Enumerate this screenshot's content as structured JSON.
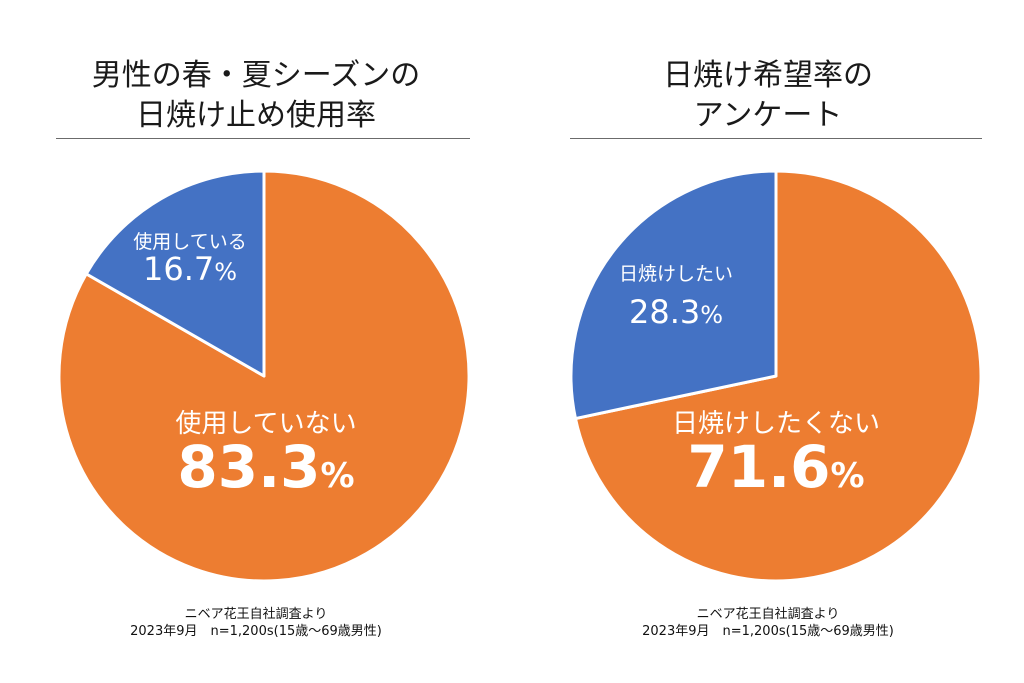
{
  "chart_data": [
    {
      "type": "pie",
      "title": "男性の春・夏シーズンの\n日焼け止め使用率",
      "slices": [
        {
          "label": "使用している",
          "value": 16.7,
          "display": "16.7",
          "color": "#4472C4"
        },
        {
          "label": "使用していない",
          "value": 83.3,
          "display": "83.3",
          "color": "#ED7D31"
        }
      ],
      "unit": "%",
      "source": [
        "ニベア花王自社調査より",
        "2023年9月　n=1,200s(15歳〜69歳男性)"
      ]
    },
    {
      "type": "pie",
      "title": "日焼け希望率の\nアンケート",
      "slices": [
        {
          "label": "日焼けしたい",
          "value": 28.3,
          "display": "28.3",
          "color": "#4472C4"
        },
        {
          "label": "日焼けしたくない",
          "value": 71.6,
          "display": "71.6",
          "color": "#ED7D31"
        }
      ],
      "unit": "%",
      "source": [
        "ニベア花王自社調査より",
        "2023年9月　n=1,200s(15歳〜69歳男性)"
      ]
    }
  ]
}
